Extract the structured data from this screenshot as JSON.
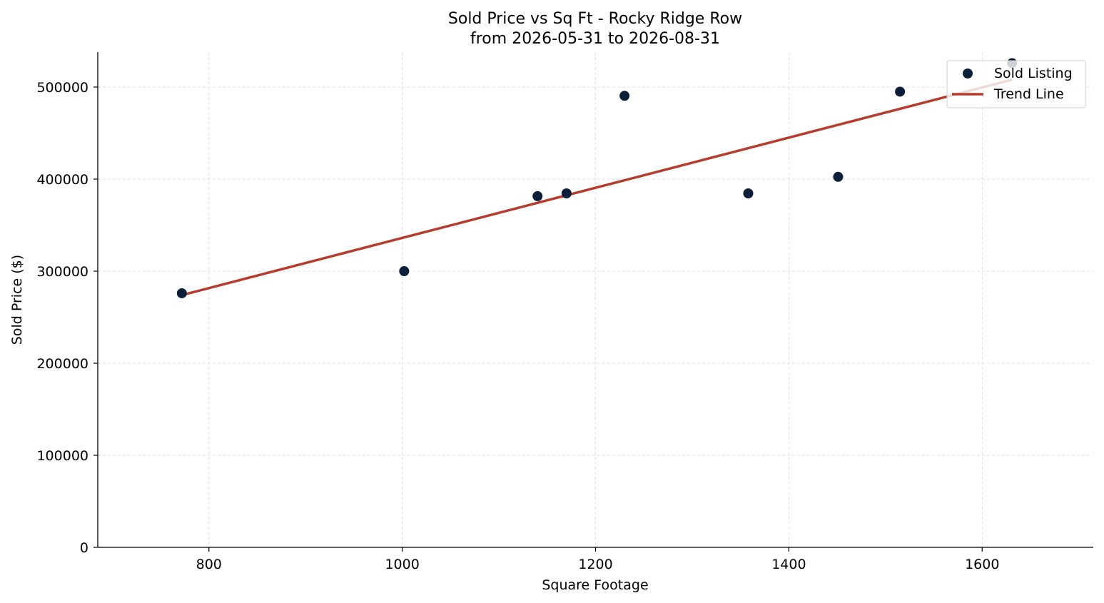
{
  "chart_data": {
    "type": "scatter",
    "title": "Sold Price vs Sq Ft - Rocky Ridge Row",
    "subtitle": "from 2026-05-31 to 2026-08-31",
    "xlabel": "Square Footage",
    "ylabel": "Sold Price ($)",
    "xlim": [
      685,
      1715
    ],
    "ylim": [
      0,
      538000
    ],
    "xticks": [
      800,
      1000,
      1200,
      1400,
      1600
    ],
    "yticks": [
      0,
      100000,
      200000,
      300000,
      400000,
      500000
    ],
    "grid": true,
    "legend_position": "top-right",
    "series": [
      {
        "name": "Sold Listing",
        "kind": "scatter",
        "color": "#0b1f3a",
        "points": [
          {
            "x": 772,
            "y": 276000
          },
          {
            "x": 1002,
            "y": 300000
          },
          {
            "x": 1140,
            "y": 381500
          },
          {
            "x": 1170,
            "y": 384500
          },
          {
            "x": 1230,
            "y": 490500
          },
          {
            "x": 1358,
            "y": 384500
          },
          {
            "x": 1451,
            "y": 402500
          },
          {
            "x": 1515,
            "y": 495000
          },
          {
            "x": 1631,
            "y": 526000
          }
        ]
      },
      {
        "name": "Trend Line",
        "kind": "line",
        "color": "#b63c2e",
        "points": [
          {
            "x": 772,
            "y": 274000
          },
          {
            "x": 1631,
            "y": 508000
          }
        ]
      }
    ]
  }
}
